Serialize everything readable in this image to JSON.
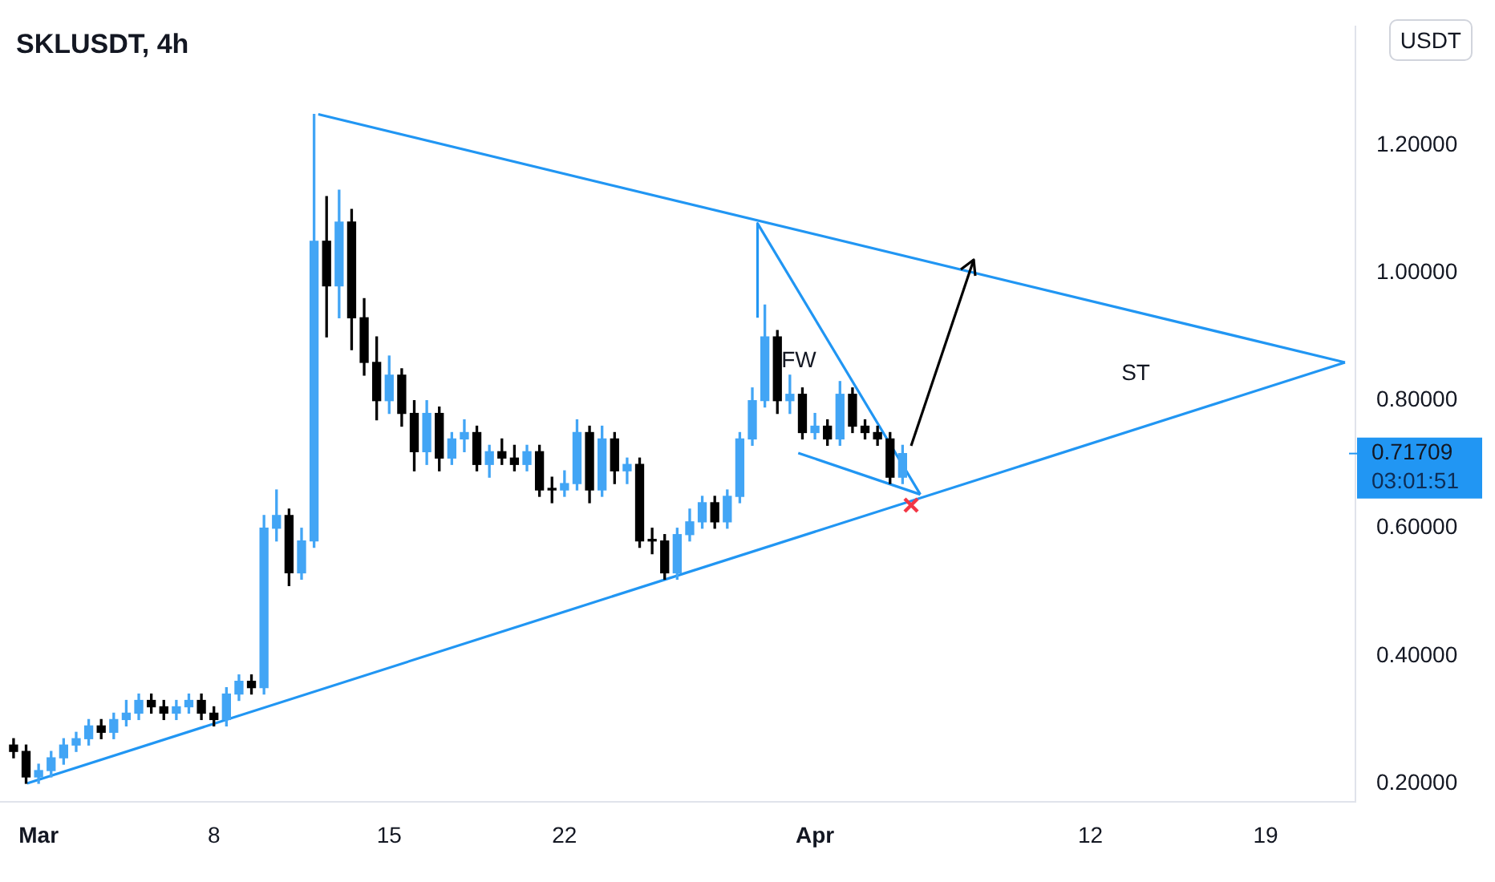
{
  "chart_data": {
    "type": "candlestick",
    "title": "SKLUSDT, 4h",
    "ylabel": "USDT",
    "x": [
      "--02-28T00:00",
      "--02-28T12:00",
      "--03-01T00:00",
      "--03-01T12:00",
      "--03-02T00:00",
      "--03-02T12:00",
      "--03-03T00:00",
      "--03-03T12:00",
      "--03-04T00:00",
      "--03-04T12:00",
      "--03-05T00:00",
      "--03-05T12:00",
      "--03-06T00:00",
      "--03-06T12:00",
      "--03-07T00:00",
      "--03-07T12:00",
      "--03-08T00:00",
      "--03-08T12:00",
      "--03-09T00:00",
      "--03-09T12:00",
      "--03-10T00:00",
      "--03-10T12:00",
      "--03-11T00:00",
      "--03-11T12:00",
      "--03-12T00:00",
      "--03-12T12:00",
      "--03-13T00:00",
      "--03-13T12:00",
      "--03-14T00:00",
      "--03-14T12:00",
      "--03-15T00:00",
      "--03-15T12:00",
      "--03-16T00:00",
      "--03-16T12:00",
      "--03-17T00:00",
      "--03-17T12:00",
      "--03-18T00:00",
      "--03-18T12:00",
      "--03-19T00:00",
      "--03-19T12:00",
      "--03-20T00:00",
      "--03-20T12:00",
      "--03-21T00:00",
      "--03-21T12:00",
      "--03-22T00:00",
      "--03-22T12:00",
      "--03-23T00:00",
      "--03-23T12:00",
      "--03-24T00:00",
      "--03-24T12:00",
      "--03-25T00:00",
      "--03-25T12:00",
      "--03-26T00:00",
      "--03-26T12:00",
      "--03-27T00:00",
      "--03-27T12:00",
      "--03-28T00:00",
      "--03-28T12:00",
      "--03-29T00:00",
      "--03-29T12:00",
      "--03-30T00:00",
      "--03-30T12:00",
      "--03-31T00:00",
      "--03-31T12:00",
      "--04-01T00:00",
      "--04-01T12:00",
      "--04-02T00:00",
      "--04-02T12:00",
      "--04-03T00:00",
      "--04-03T12:00",
      "--04-04T00:00",
      "--04-04T12:00"
    ],
    "ohlc": [
      [
        0.26,
        0.27,
        0.24,
        0.25
      ],
      [
        0.25,
        0.26,
        0.2,
        0.21
      ],
      [
        0.21,
        0.23,
        0.2,
        0.22
      ],
      [
        0.22,
        0.25,
        0.21,
        0.24
      ],
      [
        0.24,
        0.27,
        0.23,
        0.26
      ],
      [
        0.26,
        0.28,
        0.25,
        0.27
      ],
      [
        0.27,
        0.3,
        0.26,
        0.29
      ],
      [
        0.29,
        0.3,
        0.27,
        0.28
      ],
      [
        0.28,
        0.31,
        0.27,
        0.3
      ],
      [
        0.3,
        0.33,
        0.29,
        0.31
      ],
      [
        0.31,
        0.34,
        0.3,
        0.33
      ],
      [
        0.33,
        0.34,
        0.31,
        0.32
      ],
      [
        0.32,
        0.33,
        0.3,
        0.31
      ],
      [
        0.31,
        0.33,
        0.3,
        0.32
      ],
      [
        0.32,
        0.34,
        0.31,
        0.33
      ],
      [
        0.33,
        0.34,
        0.3,
        0.31
      ],
      [
        0.31,
        0.32,
        0.29,
        0.3
      ],
      [
        0.3,
        0.35,
        0.29,
        0.34
      ],
      [
        0.34,
        0.37,
        0.33,
        0.36
      ],
      [
        0.36,
        0.37,
        0.34,
        0.35
      ],
      [
        0.35,
        0.62,
        0.34,
        0.6
      ],
      [
        0.6,
        0.66,
        0.58,
        0.62
      ],
      [
        0.62,
        0.63,
        0.51,
        0.53
      ],
      [
        0.53,
        0.6,
        0.52,
        0.58
      ],
      [
        0.58,
        1.249,
        0.57,
        1.05
      ],
      [
        1.05,
        1.12,
        0.9,
        0.98
      ],
      [
        0.98,
        1.13,
        0.93,
        1.08
      ],
      [
        1.08,
        1.1,
        0.88,
        0.93
      ],
      [
        0.93,
        0.96,
        0.84,
        0.86
      ],
      [
        0.86,
        0.9,
        0.77,
        0.8
      ],
      [
        0.8,
        0.87,
        0.78,
        0.84
      ],
      [
        0.84,
        0.85,
        0.76,
        0.78
      ],
      [
        0.78,
        0.8,
        0.69,
        0.72
      ],
      [
        0.72,
        0.8,
        0.7,
        0.78
      ],
      [
        0.78,
        0.79,
        0.69,
        0.71
      ],
      [
        0.71,
        0.75,
        0.7,
        0.74
      ],
      [
        0.74,
        0.77,
        0.72,
        0.75
      ],
      [
        0.75,
        0.76,
        0.69,
        0.7
      ],
      [
        0.7,
        0.73,
        0.68,
        0.72
      ],
      [
        0.72,
        0.74,
        0.7,
        0.71
      ],
      [
        0.71,
        0.73,
        0.69,
        0.7
      ],
      [
        0.7,
        0.73,
        0.69,
        0.72
      ],
      [
        0.72,
        0.73,
        0.65,
        0.66
      ],
      [
        0.66,
        0.68,
        0.64,
        0.66
      ],
      [
        0.66,
        0.69,
        0.65,
        0.67
      ],
      [
        0.67,
        0.77,
        0.66,
        0.75
      ],
      [
        0.75,
        0.76,
        0.64,
        0.66
      ],
      [
        0.66,
        0.76,
        0.65,
        0.74
      ],
      [
        0.74,
        0.75,
        0.67,
        0.69
      ],
      [
        0.69,
        0.71,
        0.67,
        0.7
      ],
      [
        0.7,
        0.71,
        0.57,
        0.58
      ],
      [
        0.58,
        0.6,
        0.56,
        0.58
      ],
      [
        0.58,
        0.59,
        0.52,
        0.53
      ],
      [
        0.53,
        0.6,
        0.52,
        0.59
      ],
      [
        0.59,
        0.63,
        0.58,
        0.61
      ],
      [
        0.61,
        0.65,
        0.6,
        0.64
      ],
      [
        0.64,
        0.65,
        0.6,
        0.61
      ],
      [
        0.61,
        0.66,
        0.6,
        0.65
      ],
      [
        0.65,
        0.75,
        0.64,
        0.74
      ],
      [
        0.74,
        0.82,
        0.73,
        0.8
      ],
      [
        0.8,
        0.95,
        0.79,
        0.9
      ],
      [
        0.9,
        0.91,
        0.78,
        0.8
      ],
      [
        0.8,
        0.84,
        0.78,
        0.81
      ],
      [
        0.81,
        0.82,
        0.74,
        0.75
      ],
      [
        0.75,
        0.78,
        0.74,
        0.76
      ],
      [
        0.76,
        0.77,
        0.73,
        0.74
      ],
      [
        0.74,
        0.83,
        0.73,
        0.81
      ],
      [
        0.81,
        0.82,
        0.75,
        0.76
      ],
      [
        0.76,
        0.77,
        0.74,
        0.75
      ],
      [
        0.75,
        0.76,
        0.73,
        0.74
      ],
      [
        0.74,
        0.75,
        0.67,
        0.68
      ],
      [
        0.68,
        0.73,
        0.67,
        0.71709
      ]
    ],
    "colors": [
      "#000000",
      "#000000",
      "#42a5f5",
      "#42a5f5",
      "#42a5f5",
      "#42a5f5",
      "#42a5f5",
      "#000000",
      "#42a5f5",
      "#42a5f5",
      "#42a5f5",
      "#000000",
      "#000000",
      "#42a5f5",
      "#42a5f5",
      "#000000",
      "#000000",
      "#42a5f5",
      "#42a5f5",
      "#000000",
      "#42a5f5",
      "#42a5f5",
      "#000000",
      "#42a5f5",
      "#42a5f5",
      "#000000",
      "#42a5f5",
      "#000000",
      "#000000",
      "#000000",
      "#42a5f5",
      "#000000",
      "#000000",
      "#42a5f5",
      "#000000",
      "#42a5f5",
      "#42a5f5",
      "#000000",
      "#42a5f5",
      "#000000",
      "#000000",
      "#42a5f5",
      "#000000",
      "#000000",
      "#42a5f5",
      "#42a5f5",
      "#000000",
      "#42a5f5",
      "#000000",
      "#42a5f5",
      "#000000",
      "#000000",
      "#000000",
      "#42a5f5",
      "#42a5f5",
      "#42a5f5",
      "#000000",
      "#42a5f5",
      "#42a5f5",
      "#42a5f5",
      "#42a5f5",
      "#000000",
      "#42a5f5",
      "#000000",
      "#42a5f5",
      "#000000",
      "#42a5f5",
      "#000000",
      "#000000",
      "#000000",
      "#000000",
      "#42a5f5"
    ],
    "series": [
      {
        "type": "line",
        "color": "#2196f3",
        "x": [
          "--03-12T04:00",
          "--04-22T04:00"
        ],
        "values": [
          1.249,
          0.86
        ]
      },
      {
        "type": "line",
        "color": "#2196f3",
        "x": [
          "--02-28T13:00",
          "--04-22T04:00"
        ],
        "values": [
          0.2,
          0.86
        ]
      },
      {
        "type": "line",
        "color": "#2196f3",
        "x": [
          "--03-29T17:00",
          "--03-29T17:00",
          "--04-05T05:00"
        ],
        "values": [
          0.93,
          1.078,
          0.653
        ]
      },
      {
        "type": "line",
        "color": "#2196f3",
        "x": [
          "--03-31T08:00",
          "--04-05T05:00"
        ],
        "values": [
          0.718,
          0.653
        ]
      }
    ],
    "marker": "none",
    "xlim": [
      "--02-27T11:00",
      "--04-22T14:00"
    ],
    "xticks": [
      {
        "value": "--03-01",
        "label": "Mar"
      },
      {
        "value": "--03-08",
        "label": "8"
      },
      {
        "value": "--03-15",
        "label": "15"
      },
      {
        "value": "--03-22",
        "label": "22"
      },
      {
        "value": "--04-01",
        "label": "Apr"
      },
      {
        "value": "--04-12",
        "label": "12"
      },
      {
        "value": "--04-19",
        "label": "19"
      }
    ],
    "ylim": [
      0.171,
      1.387
    ],
    "yticks": [
      {
        "value": 0.2,
        "label": "0.20000"
      },
      {
        "value": 0.4,
        "label": "0.40000"
      },
      {
        "value": 0.6,
        "label": "0.60000"
      },
      {
        "value": 0.8,
        "label": "0.80000"
      },
      {
        "value": 1.0,
        "label": "1.00000"
      },
      {
        "value": 1.2,
        "label": "1.20000"
      }
    ],
    "ref_lines": [
      {
        "axis": "y",
        "value": 0.71709,
        "label": "0.71709",
        "color": "#2196f3"
      }
    ],
    "annotations": [
      "FW",
      "ST",
      "03:01:51"
    ]
  }
}
